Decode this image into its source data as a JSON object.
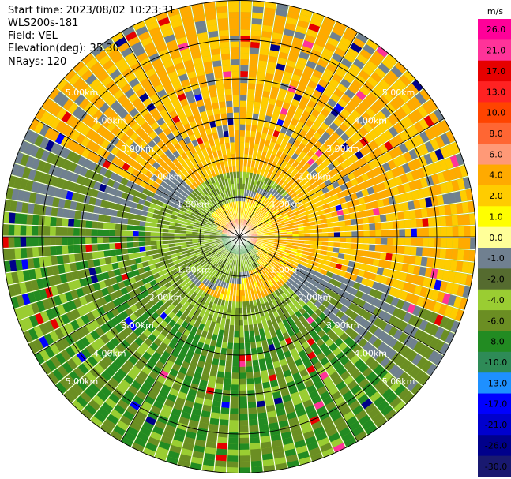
{
  "header": {
    "start_time": "Start time: 2023/08/02 10:23:31",
    "instrument": "WLS200s-181",
    "field": "Field: VEL",
    "elevation": "Elevation(deg): 35.30",
    "nrays": "NRays: 120"
  },
  "chart_data": {
    "type": "heatmap",
    "projection": "polar-ppi",
    "field": "VEL",
    "units": "m/s",
    "elevation_deg": 35.3,
    "n_rays": 120,
    "max_range_km": 6.0,
    "range_ring_km": [
      1,
      2,
      3,
      4,
      5
    ],
    "range_labels": [
      "1.00km",
      "2.00km",
      "3.00km",
      "4.00km",
      "5.00km"
    ],
    "azimuth_spokes_deg": [
      0,
      30,
      60,
      90,
      120,
      150,
      180,
      210,
      240,
      270,
      300,
      330
    ],
    "colorbar": {
      "label": "m/s",
      "tick_labels": [
        "26.0",
        "21.0",
        "17.0",
        "13.0",
        "10.0",
        "8.0",
        "6.0",
        "4.0",
        "2.0",
        "1.0",
        "0.0",
        "-1.0",
        "-2.0",
        "-4.0",
        "-6.0",
        "-8.0",
        "-10.0",
        "-13.0",
        "-17.0",
        "-21.0",
        "-26.0",
        "-30.0"
      ],
      "colors": [
        "#ff0099",
        "#ff3399",
        "#e60000",
        "#ff2222",
        "#ff4400",
        "#ff6633",
        "#ff9977",
        "#ffaa00",
        "#ffcc00",
        "#ffff00",
        "#ffff99",
        "#708090",
        "#556b2f",
        "#9acd32",
        "#6b8e23",
        "#228b22",
        "#2e8b57",
        "#1e90ff",
        "#0000ff",
        "#0000cd",
        "#00008b",
        "#191970"
      ]
    }
  }
}
